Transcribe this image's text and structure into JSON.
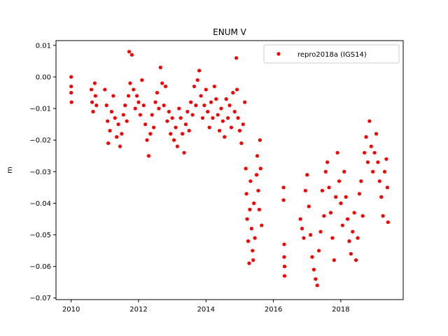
{
  "chart_data": {
    "type": "scatter",
    "title": "ENUM V",
    "xlabel": "",
    "ylabel": "m",
    "xlim": [
      2009.55,
      2019.85
    ],
    "ylim": [
      -0.0705,
      0.0115
    ],
    "x_ticks": [
      2010,
      2012,
      2014,
      2016,
      2018
    ],
    "x_tick_labels": [
      "2010",
      "2012",
      "2014",
      "2016",
      "2018"
    ],
    "y_ticks": [
      0.01,
      0.0,
      -0.01,
      -0.02,
      -0.03,
      -0.04,
      -0.05,
      -0.06,
      -0.07
    ],
    "y_tick_labels": [
      "0.01",
      "0.00",
      "−0.01",
      "−0.02",
      "−0.03",
      "−0.04",
      "−0.05",
      "−0.06",
      "−0.07"
    ],
    "grid": false,
    "legend_position": "top-right",
    "series": [
      {
        "name": "repro2018a (IGS14)",
        "color": "#ff0000",
        "marker": "circle",
        "points": [
          [
            2010.0,
            0.0
          ],
          [
            2010.0,
            -0.003
          ],
          [
            2010.0,
            -0.005
          ],
          [
            2010.01,
            -0.008
          ],
          [
            2010.6,
            -0.004
          ],
          [
            2010.62,
            -0.008
          ],
          [
            2010.65,
            -0.011
          ],
          [
            2010.7,
            -0.002
          ],
          [
            2010.72,
            -0.006
          ],
          [
            2010.75,
            -0.009
          ],
          [
            2011.0,
            -0.004
          ],
          [
            2011.05,
            -0.009
          ],
          [
            2011.08,
            -0.014
          ],
          [
            2011.1,
            -0.021
          ],
          [
            2011.15,
            -0.017
          ],
          [
            2011.2,
            -0.011
          ],
          [
            2011.25,
            -0.006
          ],
          [
            2011.3,
            -0.013
          ],
          [
            2011.35,
            -0.019
          ],
          [
            2011.4,
            -0.015
          ],
          [
            2011.45,
            -0.022
          ],
          [
            2011.5,
            -0.018
          ],
          [
            2011.55,
            -0.012
          ],
          [
            2011.6,
            -0.009
          ],
          [
            2011.65,
            -0.014
          ],
          [
            2011.7,
            -0.006
          ],
          [
            2011.72,
            0.008
          ],
          [
            2011.75,
            -0.002
          ],
          [
            2011.8,
            0.007
          ],
          [
            2011.85,
            -0.004
          ],
          [
            2011.9,
            -0.01
          ],
          [
            2011.95,
            -0.006
          ],
          [
            2012.0,
            -0.008
          ],
          [
            2012.05,
            -0.012
          ],
          [
            2012.1,
            -0.001
          ],
          [
            2012.15,
            -0.009
          ],
          [
            2012.2,
            -0.015
          ],
          [
            2012.25,
            -0.02
          ],
          [
            2012.3,
            -0.025
          ],
          [
            2012.35,
            -0.018
          ],
          [
            2012.4,
            -0.012
          ],
          [
            2012.45,
            -0.016
          ],
          [
            2012.5,
            -0.008
          ],
          [
            2012.55,
            -0.005
          ],
          [
            2012.6,
            -0.01
          ],
          [
            2012.65,
            0.003
          ],
          [
            2012.7,
            -0.002
          ],
          [
            2012.75,
            -0.009
          ],
          [
            2012.8,
            -0.003
          ],
          [
            2012.85,
            -0.014
          ],
          [
            2012.9,
            -0.011
          ],
          [
            2012.95,
            -0.018
          ],
          [
            2013.0,
            -0.013
          ],
          [
            2013.05,
            -0.02
          ],
          [
            2013.1,
            -0.016
          ],
          [
            2013.15,
            -0.022
          ],
          [
            2013.2,
            -0.01
          ],
          [
            2013.25,
            -0.013
          ],
          [
            2013.3,
            -0.018
          ],
          [
            2013.35,
            -0.024
          ],
          [
            2013.4,
            -0.015
          ],
          [
            2013.45,
            -0.011
          ],
          [
            2013.5,
            -0.017
          ],
          [
            2013.55,
            -0.008
          ],
          [
            2013.6,
            -0.012
          ],
          [
            2013.65,
            -0.003
          ],
          [
            2013.7,
            -0.009
          ],
          [
            2013.75,
            -0.001
          ],
          [
            2013.8,
            0.002
          ],
          [
            2013.85,
            -0.006
          ],
          [
            2013.9,
            -0.013
          ],
          [
            2013.95,
            -0.009
          ],
          [
            2014.0,
            -0.004
          ],
          [
            2014.05,
            -0.011
          ],
          [
            2014.1,
            -0.016
          ],
          [
            2014.15,
            -0.008
          ],
          [
            2014.2,
            -0.013
          ],
          [
            2014.25,
            -0.003
          ],
          [
            2014.3,
            -0.007
          ],
          [
            2014.35,
            -0.012
          ],
          [
            2014.4,
            -0.017
          ],
          [
            2014.45,
            -0.01
          ],
          [
            2014.5,
            -0.014
          ],
          [
            2014.55,
            -0.019
          ],
          [
            2014.6,
            -0.007
          ],
          [
            2014.65,
            -0.013
          ],
          [
            2014.7,
            -0.009
          ],
          [
            2014.75,
            -0.016
          ],
          [
            2014.8,
            -0.005
          ],
          [
            2014.85,
            -0.011
          ],
          [
            2014.9,
            0.006
          ],
          [
            2014.92,
            -0.004
          ],
          [
            2014.95,
            -0.013
          ],
          [
            2015.0,
            -0.017
          ],
          [
            2015.05,
            -0.021
          ],
          [
            2015.1,
            -0.015
          ],
          [
            2015.15,
            -0.008
          ],
          [
            2015.18,
            -0.029
          ],
          [
            2015.2,
            -0.037
          ],
          [
            2015.22,
            -0.045
          ],
          [
            2015.25,
            -0.052
          ],
          [
            2015.28,
            -0.059
          ],
          [
            2015.3,
            -0.042
          ],
          [
            2015.32,
            -0.033
          ],
          [
            2015.35,
            -0.048
          ],
          [
            2015.38,
            -0.055
          ],
          [
            2015.4,
            -0.058
          ],
          [
            2015.42,
            -0.04
          ],
          [
            2015.45,
            -0.051
          ],
          [
            2015.5,
            -0.031
          ],
          [
            2015.52,
            -0.025
          ],
          [
            2015.55,
            -0.036
          ],
          [
            2015.58,
            -0.042
          ],
          [
            2015.6,
            -0.02
          ],
          [
            2015.62,
            -0.029
          ],
          [
            2015.65,
            -0.047
          ],
          [
            2016.3,
            -0.035
          ],
          [
            2016.3,
            -0.039
          ],
          [
            2016.32,
            -0.053
          ],
          [
            2016.32,
            -0.057
          ],
          [
            2016.33,
            -0.06
          ],
          [
            2016.33,
            -0.063
          ],
          [
            2016.8,
            -0.045
          ],
          [
            2016.85,
            -0.048
          ],
          [
            2016.9,
            -0.051
          ],
          [
            2016.95,
            -0.036
          ],
          [
            2017.0,
            -0.031
          ],
          [
            2017.05,
            -0.041
          ],
          [
            2017.1,
            -0.05
          ],
          [
            2017.15,
            -0.057
          ],
          [
            2017.2,
            -0.061
          ],
          [
            2017.25,
            -0.064
          ],
          [
            2017.3,
            -0.066
          ],
          [
            2017.35,
            -0.055
          ],
          [
            2017.4,
            -0.049
          ],
          [
            2017.45,
            -0.036
          ],
          [
            2017.5,
            -0.044
          ],
          [
            2017.55,
            -0.03
          ],
          [
            2017.6,
            -0.027
          ],
          [
            2017.65,
            -0.035
          ],
          [
            2017.7,
            -0.043
          ],
          [
            2017.75,
            -0.051
          ],
          [
            2017.8,
            -0.058
          ],
          [
            2017.85,
            -0.038
          ],
          [
            2017.9,
            -0.024
          ],
          [
            2017.95,
            -0.033
          ],
          [
            2018.0,
            -0.04
          ],
          [
            2018.05,
            -0.047
          ],
          [
            2018.1,
            -0.03
          ],
          [
            2018.15,
            -0.038
          ],
          [
            2018.2,
            -0.045
          ],
          [
            2018.25,
            -0.052
          ],
          [
            2018.3,
            -0.056
          ],
          [
            2018.35,
            -0.049
          ],
          [
            2018.4,
            -0.043
          ],
          [
            2018.45,
            -0.058
          ],
          [
            2018.5,
            -0.051
          ],
          [
            2018.55,
            -0.037
          ],
          [
            2018.6,
            -0.033
          ],
          [
            2018.65,
            -0.044
          ],
          [
            2018.7,
            -0.024
          ],
          [
            2018.75,
            -0.019
          ],
          [
            2018.8,
            -0.027
          ],
          [
            2018.85,
            -0.014
          ],
          [
            2018.9,
            -0.022
          ],
          [
            2018.95,
            -0.03
          ],
          [
            2019.0,
            -0.024
          ],
          [
            2019.05,
            -0.018
          ],
          [
            2019.1,
            -0.027
          ],
          [
            2019.15,
            -0.033
          ],
          [
            2019.2,
            -0.038
          ],
          [
            2019.25,
            -0.044
          ],
          [
            2019.3,
            -0.03
          ],
          [
            2019.35,
            -0.026
          ],
          [
            2019.38,
            -0.035
          ],
          [
            2019.4,
            -0.046
          ]
        ]
      }
    ]
  }
}
